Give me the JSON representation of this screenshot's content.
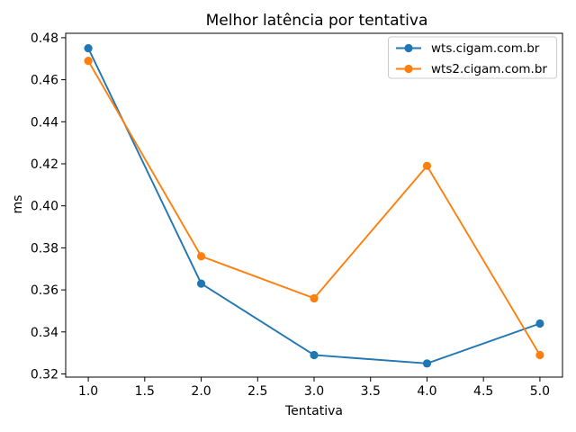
{
  "chart_data": {
    "type": "line",
    "title": "Melhor latência por tentativa",
    "xlabel": "Tentativa",
    "ylabel": "ms",
    "x": [
      1,
      2,
      3,
      4,
      5
    ],
    "series": [
      {
        "name": "wts.cigam.com.br",
        "color": "#1f77b4",
        "marker": "circle",
        "values": [
          0.475,
          0.363,
          0.329,
          0.325,
          0.344
        ]
      },
      {
        "name": "wts2.cigam.com.br",
        "color": "#ff7f0e",
        "marker": "circle",
        "values": [
          0.469,
          0.376,
          0.356,
          0.419,
          0.329
        ]
      }
    ],
    "xticks": [
      1.0,
      1.5,
      2.0,
      2.5,
      3.0,
      3.5,
      4.0,
      4.5,
      5.0
    ],
    "xtick_labels": [
      "1.0",
      "1.5",
      "2.0",
      "2.5",
      "3.0",
      "3.5",
      "4.0",
      "4.5",
      "5.0"
    ],
    "yticks": [
      0.32,
      0.34,
      0.36,
      0.38,
      0.4,
      0.42,
      0.44,
      0.46,
      0.48
    ],
    "ytick_labels": [
      "0.32",
      "0.34",
      "0.36",
      "0.38",
      "0.40",
      "0.42",
      "0.44",
      "0.46",
      "0.48"
    ],
    "xlim": [
      0.8,
      5.2
    ],
    "ylim": [
      0.3185,
      0.4821
    ],
    "grid": false,
    "legend_position": "upper right",
    "background": "#ffffff",
    "axis_color": "#000000",
    "legend_border_color": "#cccccc"
  }
}
